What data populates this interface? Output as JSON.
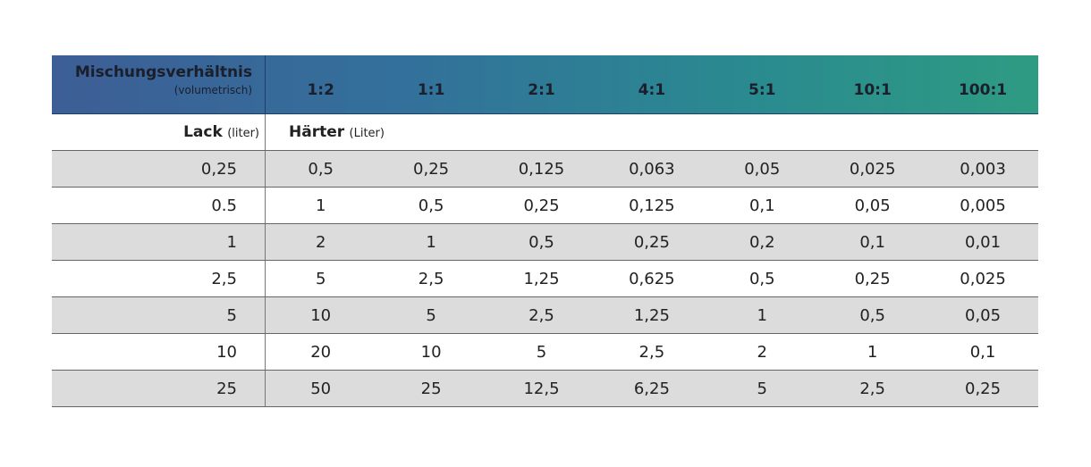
{
  "header": {
    "title": "Mischungsverhältnis",
    "subtitle": "(volumetrisch)",
    "ratios": [
      "1:2",
      "1:1",
      "2:1",
      "4:1",
      "5:1",
      "10:1",
      "100:1"
    ]
  },
  "subheader": {
    "lack_label": "Lack",
    "lack_unit": "(liter)",
    "haerter_label": "Härter",
    "haerter_unit": "(Liter)"
  },
  "rows": [
    {
      "lack": "0,25",
      "values": [
        "0,5",
        "0,25",
        "0,125",
        "0,063",
        "0,05",
        "0,025",
        "0,003"
      ]
    },
    {
      "lack": "0.5",
      "values": [
        "1",
        "0,5",
        "0,25",
        "0,125",
        "0,1",
        "0,05",
        "0,005"
      ]
    },
    {
      "lack": "1",
      "values": [
        "2",
        "1",
        "0,5",
        "0,25",
        "0,2",
        "0,1",
        "0,01"
      ]
    },
    {
      "lack": "2,5",
      "values": [
        "5",
        "2,5",
        "1,25",
        "0,625",
        "0,5",
        "0,25",
        "0,025"
      ]
    },
    {
      "lack": "5",
      "values": [
        "10",
        "5",
        "2,5",
        "1,25",
        "1",
        "0,5",
        "0,05"
      ]
    },
    {
      "lack": "10",
      "values": [
        "20",
        "10",
        "5",
        "2,5",
        "2",
        "1",
        "0,1"
      ]
    },
    {
      "lack": "25",
      "values": [
        "50",
        "25",
        "12,5",
        "6,25",
        "5",
        "2,5",
        "0,25"
      ]
    }
  ],
  "colors": {
    "header_gradient_start": "#3d5e96",
    "header_gradient_end": "#2e9b82",
    "row_shade": "#dcdcdc"
  }
}
